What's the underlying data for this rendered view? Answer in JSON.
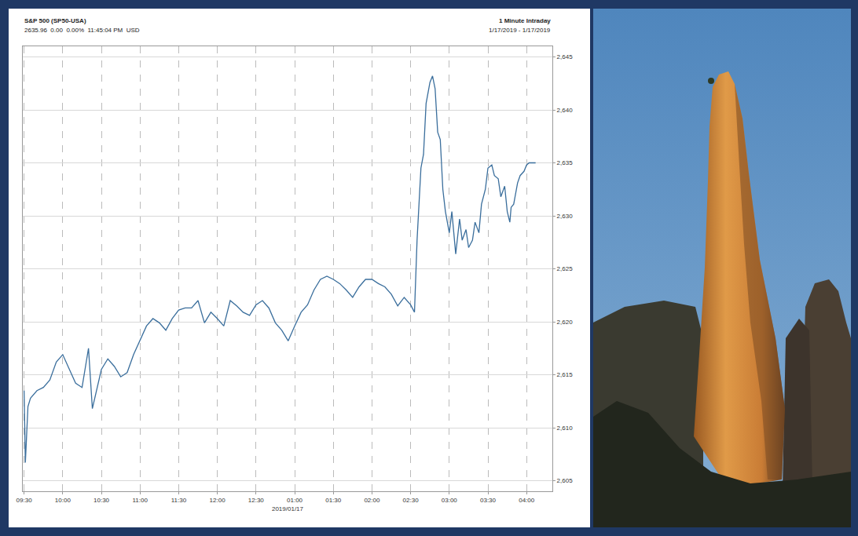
{
  "chart_data": {
    "type": "line",
    "title": "S&P 500 (SP50-USA)",
    "subtitle": "2635.96  0.00  0.00%  11:45:04 PM  USD",
    "annotations": [
      "1 Minute Intraday",
      "1/17/2019 - 1/17/2019"
    ],
    "x_label": "2019/01/17",
    "color": "#3a6e9c",
    "grid": true,
    "line_style": "solid",
    "xlim": [
      "2019-01-17 09:29",
      "2019-01-17 16:20"
    ],
    "ylim": [
      2604,
      2646
    ],
    "xticks": [
      {
        "value": "2019-01-17 09:30",
        "label": "09:30"
      },
      {
        "value": "2019-01-17 10:00",
        "label": "10:00"
      },
      {
        "value": "2019-01-17 10:30",
        "label": "10:30"
      },
      {
        "value": "2019-01-17 11:00",
        "label": "11:00"
      },
      {
        "value": "2019-01-17 11:30",
        "label": "11:30"
      },
      {
        "value": "2019-01-17 12:00",
        "label": "12:00"
      },
      {
        "value": "2019-01-17 12:30",
        "label": "12:30"
      },
      {
        "value": "2019-01-17 13:00",
        "label": "01:00"
      },
      {
        "value": "2019-01-17 13:30",
        "label": "01:30"
      },
      {
        "value": "2019-01-17 14:00",
        "label": "02:00"
      },
      {
        "value": "2019-01-17 14:30",
        "label": "02:30"
      },
      {
        "value": "2019-01-17 15:00",
        "label": "03:00"
      },
      {
        "value": "2019-01-17 15:30",
        "label": "03:30"
      },
      {
        "value": "2019-01-17 16:00",
        "label": "04:00"
      }
    ],
    "yticks": [
      {
        "value": 2605,
        "label": "2,605"
      },
      {
        "value": 2610,
        "label": "2,610"
      },
      {
        "value": 2615,
        "label": "2,615"
      },
      {
        "value": 2620,
        "label": "2,620"
      },
      {
        "value": 2625,
        "label": "2,625"
      },
      {
        "value": 2630,
        "label": "2,630"
      },
      {
        "value": 2635,
        "label": "2,635"
      },
      {
        "value": 2640,
        "label": "2,640"
      },
      {
        "value": 2645,
        "label": "2,645"
      }
    ],
    "x": [
      "2019-01-17 09:30",
      "2019-01-17 09:31",
      "2019-01-17 09:33",
      "2019-01-17 09:35",
      "2019-01-17 09:40",
      "2019-01-17 09:45",
      "2019-01-17 09:50",
      "2019-01-17 09:55",
      "2019-01-17 10:00",
      "2019-01-17 10:05",
      "2019-01-17 10:10",
      "2019-01-17 10:15",
      "2019-01-17 10:20",
      "2019-01-17 10:23",
      "2019-01-17 10:25",
      "2019-01-17 10:30",
      "2019-01-17 10:35",
      "2019-01-17 10:40",
      "2019-01-17 10:45",
      "2019-01-17 10:50",
      "2019-01-17 10:55",
      "2019-01-17 11:00",
      "2019-01-17 11:05",
      "2019-01-17 11:10",
      "2019-01-17 11:15",
      "2019-01-17 11:20",
      "2019-01-17 11:25",
      "2019-01-17 11:30",
      "2019-01-17 11:35",
      "2019-01-17 11:40",
      "2019-01-17 11:45",
      "2019-01-17 11:50",
      "2019-01-17 11:55",
      "2019-01-17 12:00",
      "2019-01-17 12:05",
      "2019-01-17 12:10",
      "2019-01-17 12:15",
      "2019-01-17 12:20",
      "2019-01-17 12:25",
      "2019-01-17 12:30",
      "2019-01-17 12:35",
      "2019-01-17 12:40",
      "2019-01-17 12:45",
      "2019-01-17 12:50",
      "2019-01-17 12:55",
      "2019-01-17 13:00",
      "2019-01-17 13:05",
      "2019-01-17 13:10",
      "2019-01-17 13:15",
      "2019-01-17 13:20",
      "2019-01-17 13:25",
      "2019-01-17 13:30",
      "2019-01-17 13:35",
      "2019-01-17 13:40",
      "2019-01-17 13:45",
      "2019-01-17 13:50",
      "2019-01-17 13:55",
      "2019-01-17 14:00",
      "2019-01-17 14:05",
      "2019-01-17 14:10",
      "2019-01-17 14:15",
      "2019-01-17 14:20",
      "2019-01-17 14:25",
      "2019-01-17 14:30",
      "2019-01-17 14:33",
      "2019-01-17 14:35",
      "2019-01-17 14:38",
      "2019-01-17 14:40",
      "2019-01-17 14:42",
      "2019-01-17 14:45",
      "2019-01-17 14:47",
      "2019-01-17 14:49",
      "2019-01-17 14:51",
      "2019-01-17 14:53",
      "2019-01-17 14:55",
      "2019-01-17 14:57",
      "2019-01-17 15:00",
      "2019-01-17 15:02",
      "2019-01-17 15:05",
      "2019-01-17 15:08",
      "2019-01-17 15:10",
      "2019-01-17 15:13",
      "2019-01-17 15:15",
      "2019-01-17 15:18",
      "2019-01-17 15:20",
      "2019-01-17 15:23",
      "2019-01-17 15:25",
      "2019-01-17 15:28",
      "2019-01-17 15:30",
      "2019-01-17 15:33",
      "2019-01-17 15:35",
      "2019-01-17 15:38",
      "2019-01-17 15:40",
      "2019-01-17 15:43",
      "2019-01-17 15:45",
      "2019-01-17 15:47",
      "2019-01-17 15:48",
      "2019-01-17 15:50",
      "2019-01-17 15:53",
      "2019-01-17 15:55",
      "2019-01-17 15:58",
      "2019-01-17 16:00",
      "2019-01-17 16:02",
      "2019-01-17 16:07"
    ],
    "values": [
      2613.5,
      2606.7,
      2612.0,
      2612.8,
      2613.5,
      2613.8,
      2614.5,
      2616.2,
      2616.9,
      2615.5,
      2614.2,
      2613.8,
      2617.5,
      2611.8,
      2612.8,
      2615.5,
      2616.5,
      2615.8,
      2614.8,
      2615.2,
      2616.9,
      2618.2,
      2619.6,
      2620.3,
      2619.9,
      2619.2,
      2620.3,
      2621.1,
      2621.3,
      2621.3,
      2622.0,
      2619.9,
      2620.9,
      2620.3,
      2619.6,
      2622.0,
      2621.5,
      2620.9,
      2620.6,
      2621.6,
      2622.0,
      2621.3,
      2619.9,
      2619.2,
      2618.2,
      2619.6,
      2620.9,
      2621.6,
      2623.0,
      2624.0,
      2624.3,
      2624.0,
      2623.6,
      2623.0,
      2622.3,
      2623.3,
      2624.0,
      2624.0,
      2623.6,
      2623.3,
      2622.6,
      2621.5,
      2622.3,
      2621.6,
      2620.9,
      2627.7,
      2634.5,
      2635.8,
      2640.6,
      2642.6,
      2643.2,
      2642.0,
      2637.9,
      2637.2,
      2632.5,
      2630.4,
      2628.4,
      2630.4,
      2626.4,
      2629.7,
      2627.7,
      2628.7,
      2627.0,
      2627.7,
      2629.4,
      2628.4,
      2631.1,
      2632.5,
      2634.5,
      2634.8,
      2633.8,
      2633.5,
      2631.8,
      2632.8,
      2630.4,
      2629.4,
      2630.8,
      2631.1,
      2633.1,
      2633.8,
      2634.2,
      2634.8,
      2635.0,
      2635.0
    ]
  }
}
